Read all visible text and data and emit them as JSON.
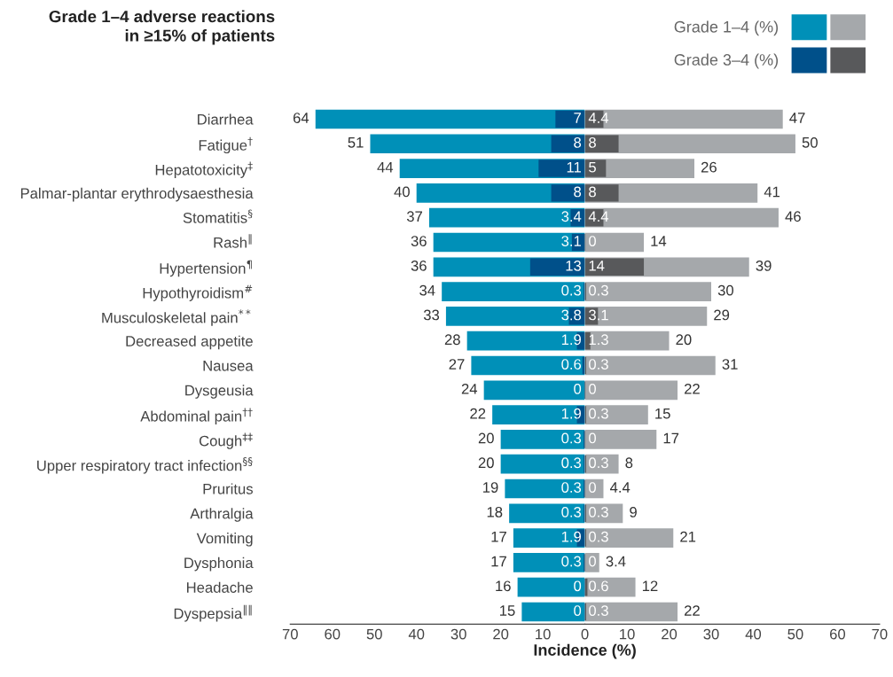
{
  "chart_data": [
    {
      "type": "bar",
      "orientation": "horizontal",
      "title": "Grade 1–4 adverse reactions\nin ≥15% of patients",
      "xlabel": "Incidence (%)",
      "categories": [
        "Diarrhea",
        "Fatigue$^{†}$",
        "Hepatotoxicity$^{‡}$",
        "Palmar-plantar erythrodysaesthesia",
        "Stomatitis$^{§}$",
        "Rash$^{‖}$",
        "Hypertension$^{¶}$",
        "Hypothyroidism$^{#}$",
        "Musculoskeletal pain$^{**}$",
        "Decreased appetite",
        "Nausea",
        "Dysgeusia",
        "Abdominal pain$^{††}$",
        "Cough$^{‡‡}$",
        "Upper respiratory tract infection$^{§§}$",
        "Pruritus",
        "Arthralgia",
        "Vomiting",
        "Dysphonia",
        "Headache",
        "Dyspepsia$^{‖‖}$"
      ],
      "series": [
        {
          "name": "Grade 1–4 (%)",
          "color": "#0090b8",
          "values": [
            64,
            51,
            44,
            40,
            37,
            36,
            36,
            34,
            33,
            28,
            27,
            24,
            22,
            20,
            20,
            19,
            18,
            17,
            17,
            16,
            15
          ]
        },
        {
          "name": "Grade 3–4 (%)",
          "color": "#00508a",
          "values": [
            7,
            8,
            11,
            8,
            3.4,
            3.1,
            13,
            0.3,
            3.8,
            1.9,
            0.6,
            0,
            1.9,
            0.3,
            0.3,
            0.3,
            0.3,
            1.9,
            0.3,
            0,
            0
          ]
        }
      ],
      "data_labels": true,
      "xlim": [
        70,
        0
      ],
      "xticks": [
        70,
        60,
        50,
        40,
        30,
        20,
        10
      ],
      "legend": "top right",
      "grid": false
    },
    {
      "type": "bar",
      "orientation": "horizontal",
      "categories": [
        null,
        null,
        null,
        null,
        null,
        null,
        null,
        null,
        null,
        null,
        null,
        null,
        null,
        null,
        null,
        null,
        null,
        null,
        null,
        null,
        null
      ],
      "series": [
        {
          "color": "#a5a8ab",
          "values": [
            47,
            50,
            26,
            41,
            46,
            14,
            39,
            30,
            29,
            20,
            31,
            22,
            15,
            17,
            8,
            4.4,
            9,
            21,
            3.4,
            12,
            22
          ]
        },
        {
          "color": "#58595b",
          "values": [
            4.4,
            8,
            5,
            8,
            4.4,
            0,
            14,
            0.3,
            3.1,
            1.3,
            0.3,
            0,
            0.3,
            0,
            0.3,
            0,
            0.3,
            0.3,
            0,
            0.6,
            0.3
          ]
        }
      ],
      "data_labels": true,
      "xlim": [
        0,
        70
      ],
      "xticks": [
        0,
        10,
        20,
        30,
        40,
        50,
        60,
        70
      ],
      "tick_labels": "x",
      "grid": false
    }
  ]
}
